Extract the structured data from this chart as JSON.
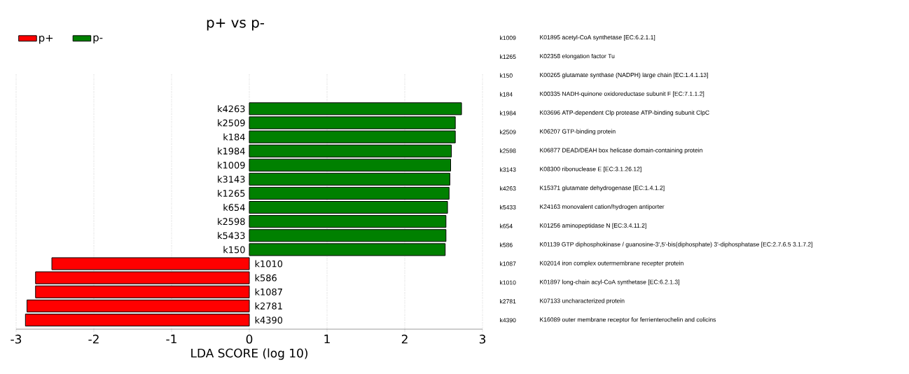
{
  "chart_data": {
    "type": "bar",
    "orientation": "horizontal",
    "title": "p+ vs p-",
    "xlabel": "LDA SCORE (log 10)",
    "categories": [
      "k4263",
      "k2509",
      "k184",
      "k1984",
      "k1009",
      "k3143",
      "k1265",
      "k654",
      "k2598",
      "k5433",
      "k150",
      "k1010",
      "k586",
      "k1087",
      "k2781",
      "k4390"
    ],
    "series": [
      {
        "name": "p+",
        "color": "#ff0000",
        "values": [
          null,
          null,
          null,
          null,
          null,
          null,
          null,
          null,
          null,
          null,
          null,
          -2.54,
          -2.75,
          -2.75,
          -2.86,
          -2.88
        ]
      },
      {
        "name": "p-",
        "color": "#008000",
        "values": [
          2.73,
          2.65,
          2.65,
          2.6,
          2.59,
          2.58,
          2.57,
          2.55,
          2.53,
          2.53,
          2.52,
          null,
          null,
          null,
          null,
          null
        ]
      }
    ],
    "xlim": [
      -3,
      3
    ],
    "xticks": [
      -3,
      -2,
      -1,
      0,
      1,
      2,
      3
    ],
    "grid": "x",
    "legend": "top left",
    "annotations": [
      "k1009",
      "K01895 acetyl-CoA synthetase [EC:6.2.1.1]",
      "k1265",
      "K02358 elongation factor Tu",
      "k150",
      "K00265 glutamate synthase (NADPH) large chain [EC:1.4.1.13]",
      "k184",
      "K00335 NADH-quinone oxidoreductase subunit F [EC:7.1.1.2]",
      "k1984",
      "K03696 ATP-dependent Clp protease ATP-binding subunit ClpC",
      "k2509",
      "K06207 GTP-binding protein",
      "k2598",
      "K06877 DEAD/DEAH box helicase domain-containing protein",
      "k3143",
      "K08300 ribonuclease E [EC:3.1.26.12]",
      "k4263",
      "K15371 glutamate dehydrogenase [EC:1.4.1.2]",
      "k5433",
      "K24163 monovalent cation/hydrogen antiporter",
      "k654",
      "K01256 aminopeptidase N [EC:3.4.11.2]",
      "k586",
      "K01139 GTP diphosphokinase / guanosine-3',5'-bis(diphosphate) 3'-diphosphatase [EC:2.7.6.5 3.1.7.2]",
      "k1087",
      "K02014 iron complex outermembrane recepter protein",
      "k1010",
      "K01897 long-chain acyl-CoA synthetase [EC:6.2.1.3]",
      "k2781",
      "K07133 uncharacterized protein",
      "k4390",
      "K16089 outer membrane receptor for ferrienterochelin and colicins"
    ]
  }
}
